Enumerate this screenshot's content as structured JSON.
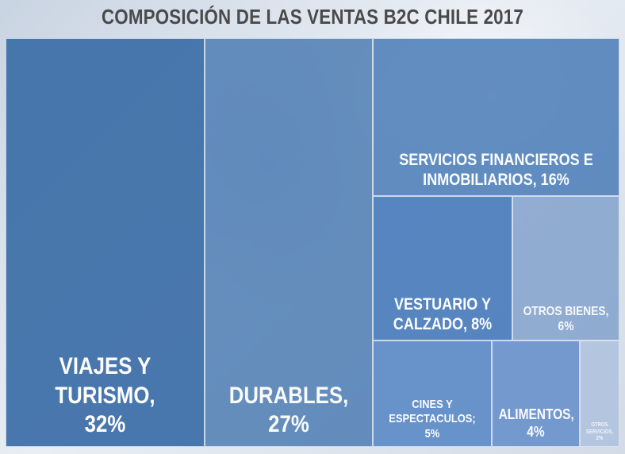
{
  "chart_data": {
    "type": "treemap",
    "title": "COMPOSICIÓN DE LAS VENTAS B2C CHILE 2017",
    "items": [
      {
        "label": "VIAJES Y TURISMO,",
        "value_label": "32%",
        "value": 32,
        "color": "#3d6fa8"
      },
      {
        "label": "DURABLES,",
        "value_label": "27%",
        "value": 27,
        "color": "#4577b0"
      },
      {
        "label": "SERVICIOS FINANCIEROS E INMOBILIARIOS,",
        "value_label": "16%",
        "value": 16,
        "color": "#4a7cb8"
      },
      {
        "label": "VESTUARIO Y CALZADO,",
        "value_label": "8%",
        "value": 8,
        "color": "#4b7dbd"
      },
      {
        "label": "OTROS BIENES,",
        "value_label": "6%",
        "value": 6,
        "color": "#7f9fcb"
      },
      {
        "label": "CINES Y ESPECTACULOS;",
        "value_label": "5%",
        "value": 5,
        "color": "#5b8ac7"
      },
      {
        "label": "ALIMENTOS,",
        "value_label": "4%",
        "value": 4,
        "color": "#6992cd"
      },
      {
        "label": "OTROS SERVICIOS,",
        "value_label": "2%",
        "value": 2,
        "color": "#a6bcdc"
      }
    ]
  }
}
